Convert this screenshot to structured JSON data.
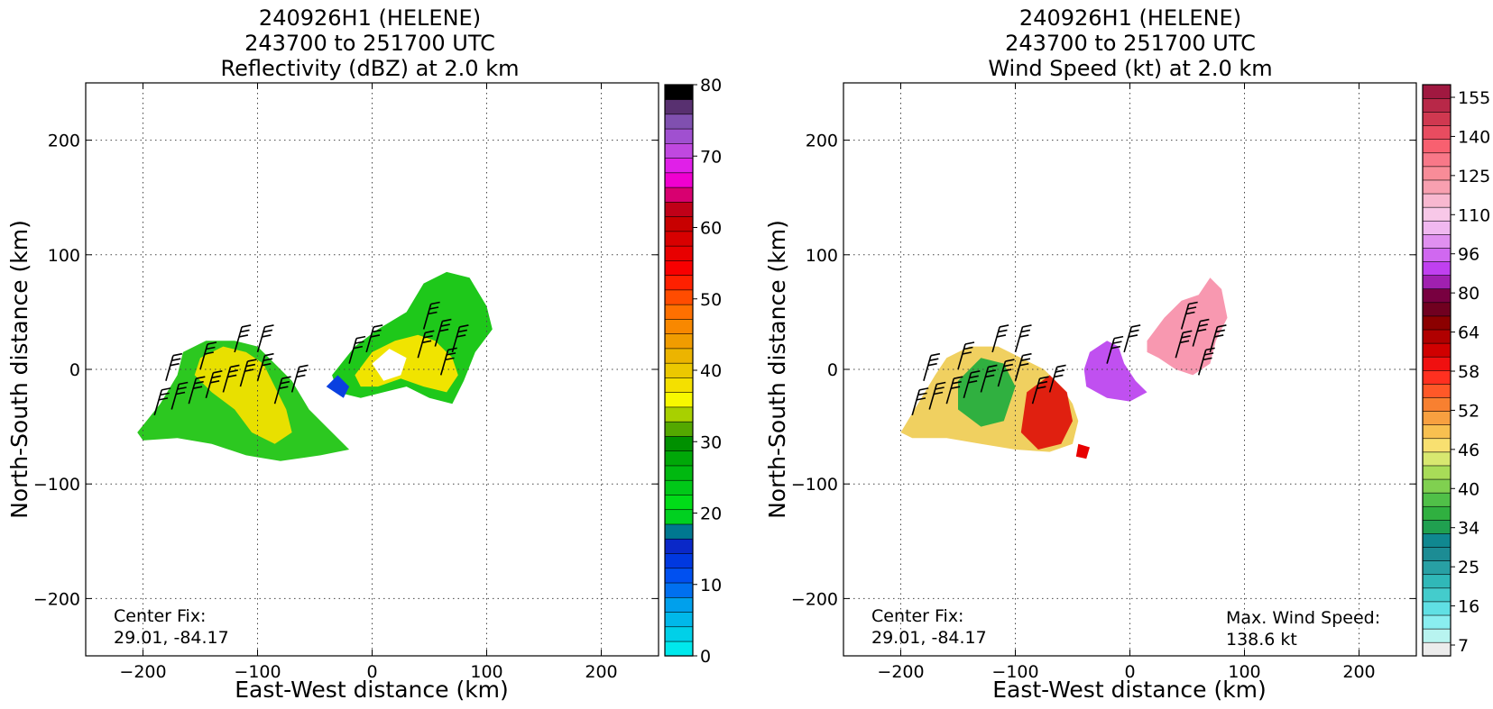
{
  "chart_data": [
    {
      "type": "heatmap",
      "title_lines": [
        "240926H1 (HELENE)",
        "243700 to 251700 UTC",
        "Reflectivity (dBZ) at 2.0 km"
      ],
      "xlabel": "East-West distance (km)",
      "ylabel": "North-South distance (km)",
      "xlim": [
        -250,
        250
      ],
      "ylim": [
        -250,
        250
      ],
      "xticks": [
        -200,
        -100,
        0,
        100,
        200
      ],
      "yticks": [
        -200,
        -100,
        0,
        100,
        200
      ],
      "grid": true,
      "annotation": [
        "Center Fix:",
        "29.01, -84.17"
      ],
      "colorbar": {
        "min": 0,
        "max": 80,
        "ticks": [
          0,
          10,
          20,
          30,
          40,
          50,
          60,
          70,
          80
        ],
        "colors": [
          "#00e8ec",
          "#00d0e8",
          "#00b8ea",
          "#00a0ec",
          "#0070f0",
          "#0050f0",
          "#0038e0",
          "#0a28c8",
          "#007890",
          "#00d020",
          "#00dc18",
          "#00c818",
          "#00b810",
          "#00a808",
          "#009000",
          "#54a800",
          "#a8d000",
          "#f8f800",
          "#f4e000",
          "#ecc800",
          "#ecb400",
          "#f09c00",
          "#f88800",
          "#ff7000",
          "#ff4c00",
          "#ff2000",
          "#f80000",
          "#e80000",
          "#d80000",
          "#c80000",
          "#c00018",
          "#d80070",
          "#f000d0",
          "#e020e8",
          "#c048e0",
          "#a050d0",
          "#8050b0",
          "#583070",
          "#000000"
        ]
      },
      "wind_barbs": true
    },
    {
      "type": "heatmap",
      "title_lines": [
        "240926H1 (HELENE)",
        "243700 to 251700 UTC",
        "Wind Speed (kt) at 2.0 km"
      ],
      "xlabel": "East-West distance (km)",
      "ylabel": "North-South distance (km)",
      "xlim": [
        -250,
        250
      ],
      "ylim": [
        -250,
        250
      ],
      "xticks": [
        -200,
        -100,
        0,
        100,
        200
      ],
      "yticks": [
        -200,
        -100,
        0,
        100,
        200
      ],
      "grid": true,
      "annotation": [
        "Center Fix:",
        "29.01, -84.17"
      ],
      "max_wind_label": [
        "Max. Wind Speed:",
        "138.6 kt"
      ],
      "max_wind_kt": 138.6,
      "colorbar": {
        "ticks": [
          "7",
          "16",
          "25",
          "34",
          "40",
          "46",
          "52",
          "58",
          "64",
          "80",
          "96",
          "110",
          "125",
          "140",
          "155"
        ],
        "colors": [
          "#ececec",
          "#b8f4f0",
          "#8aeef0",
          "#60e0e4",
          "#44cccc",
          "#30b8b8",
          "#28a0a4",
          "#1c8c94",
          "#108890",
          "#20a050",
          "#30b040",
          "#50c048",
          "#80d050",
          "#a8dc58",
          "#d8e870",
          "#f8e070",
          "#f8c050",
          "#f8a040",
          "#f88030",
          "#ff5828",
          "#ff3020",
          "#f01010",
          "#d00000",
          "#b00000",
          "#8c0000",
          "#700020",
          "#780040",
          "#a020b0",
          "#c040f0",
          "#d068f0",
          "#e090f0",
          "#f0b8f0",
          "#f8c8e8",
          "#f8b8d0",
          "#f8a0b0",
          "#f88c98",
          "#f87888",
          "#f86070",
          "#e84c60",
          "#d03850",
          "#b82848",
          "#a01840"
        ]
      },
      "wind_barbs": true
    }
  ]
}
